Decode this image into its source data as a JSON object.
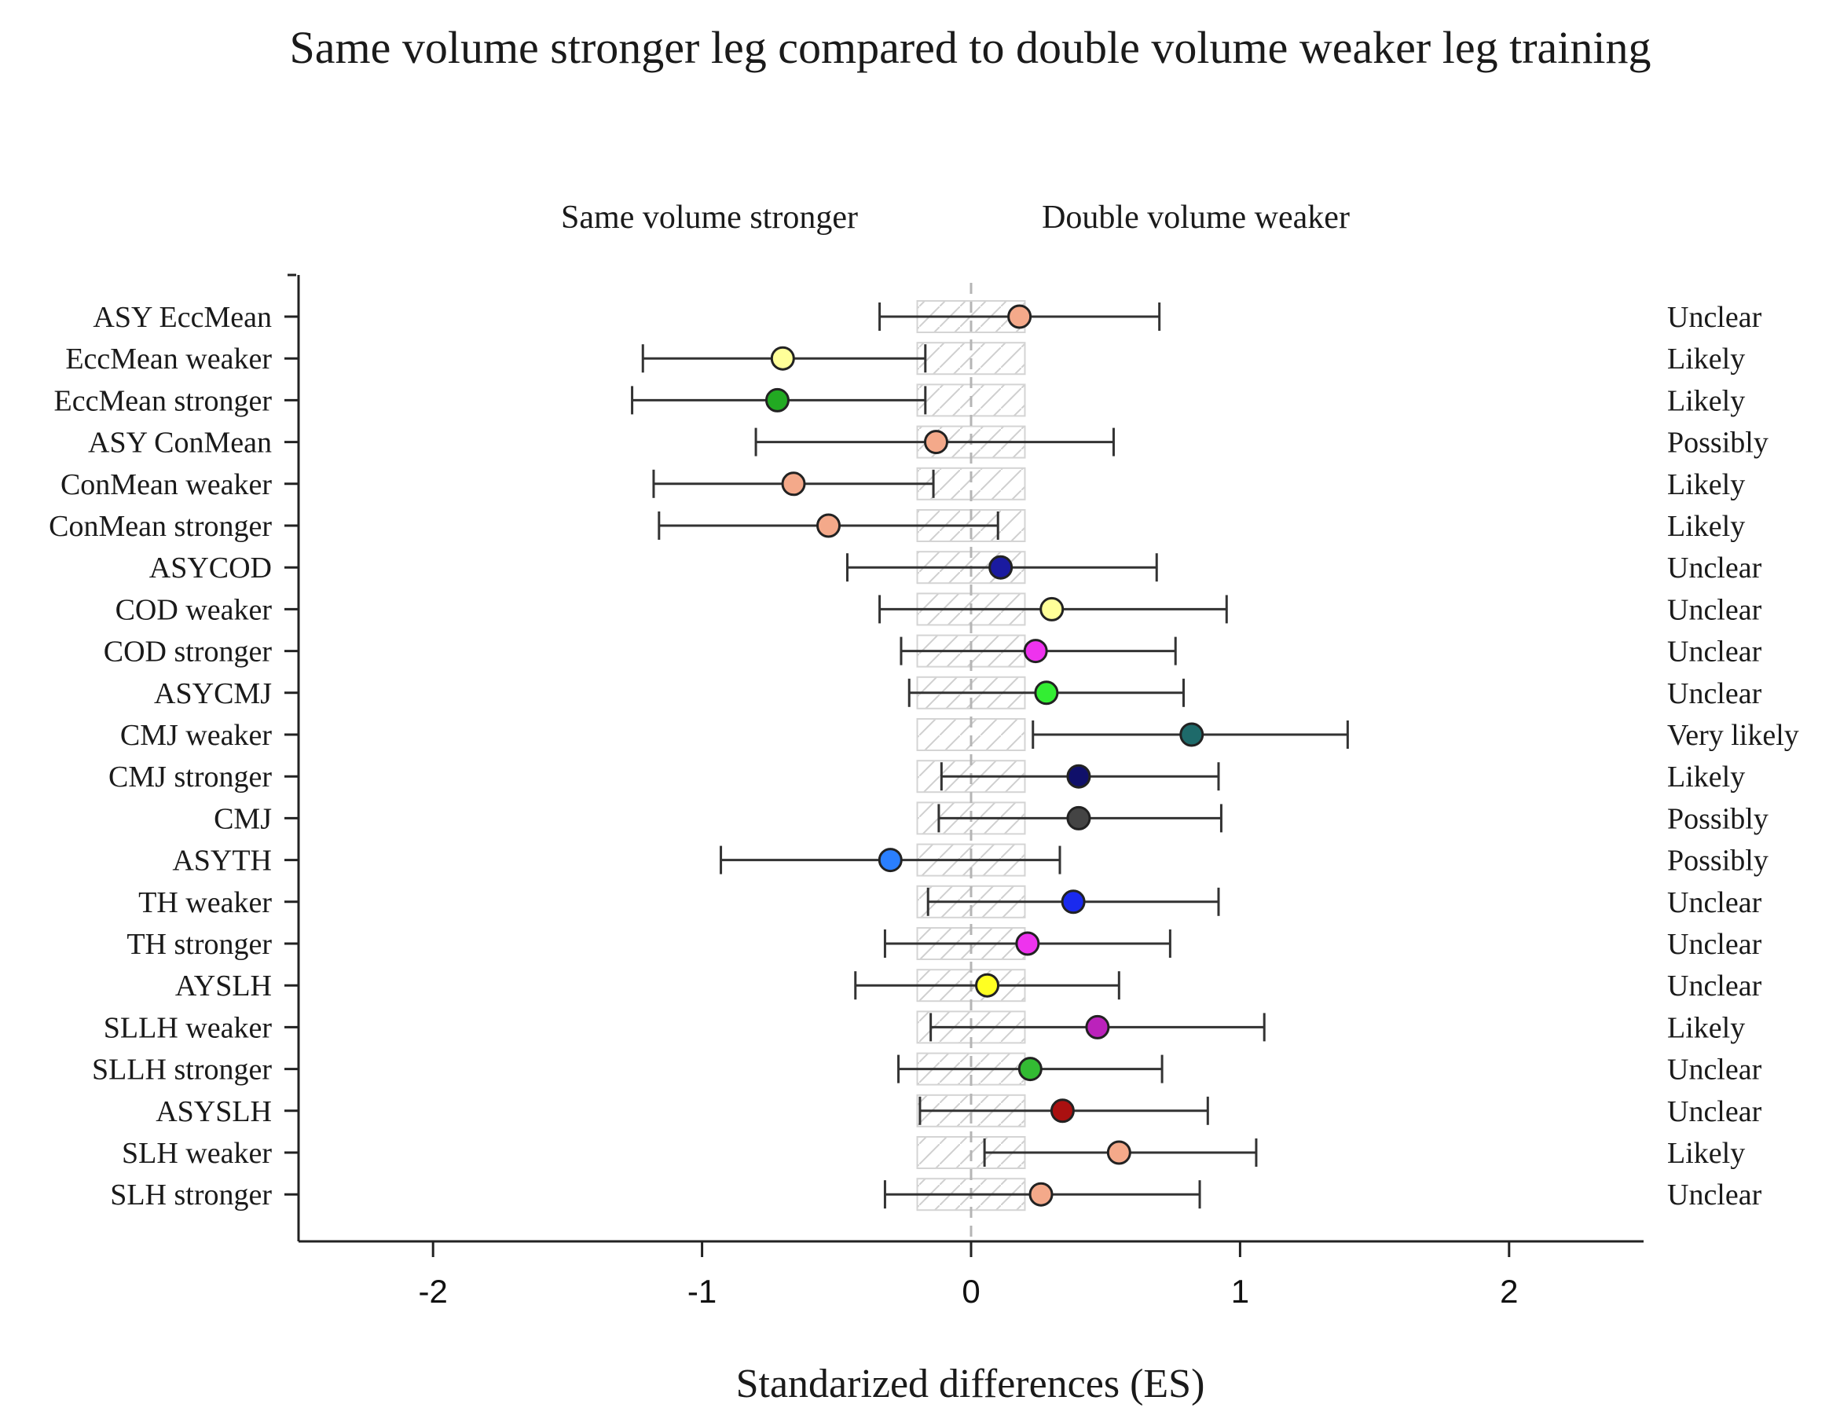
{
  "chart_data": {
    "type": "scatter",
    "title": "Same volume stronger leg compared to double volume weaker leg training",
    "xlabel": "Standarized differences (ES)",
    "region_labels": {
      "left": "Same volume stronger",
      "right": "Double volume weaker"
    },
    "xlim": [
      -2.5,
      2.5
    ],
    "xticks": [
      "-2",
      "-1",
      "0",
      "1",
      "2"
    ],
    "xtick_values": [
      -2,
      -1,
      0,
      1,
      2
    ],
    "trivial_zone": [
      -0.2,
      0.2
    ],
    "rows": [
      {
        "label": "ASY EccMean",
        "es": 0.18,
        "lo": -0.34,
        "hi": 0.7,
        "outcome": "Unclear",
        "color": "#f4a98a"
      },
      {
        "label": "EccMean weaker",
        "es": -0.7,
        "lo": -1.22,
        "hi": -0.17,
        "outcome": "Likely",
        "color": "#ffff99"
      },
      {
        "label": "EccMean stronger",
        "es": -0.72,
        "lo": -1.26,
        "hi": -0.17,
        "outcome": "Likely",
        "color": "#22aa22"
      },
      {
        "label": "ASY ConMean",
        "es": -0.13,
        "lo": -0.8,
        "hi": 0.53,
        "outcome": "Possibly",
        "color": "#f4a98a"
      },
      {
        "label": "ConMean weaker",
        "es": -0.66,
        "lo": -1.18,
        "hi": -0.14,
        "outcome": "Likely",
        "color": "#f4a98a"
      },
      {
        "label": "ConMean stronger",
        "es": -0.53,
        "lo": -1.16,
        "hi": 0.1,
        "outcome": "Likely",
        "color": "#f4a98a"
      },
      {
        "label": "ASYCOD",
        "es": 0.11,
        "lo": -0.46,
        "hi": 0.69,
        "outcome": "Unclear",
        "color": "#1a1aa0"
      },
      {
        "label": "COD weaker",
        "es": 0.3,
        "lo": -0.34,
        "hi": 0.95,
        "outcome": "Unclear",
        "color": "#ffff99"
      },
      {
        "label": "COD stronger",
        "es": 0.24,
        "lo": -0.26,
        "hi": 0.76,
        "outcome": "Unclear",
        "color": "#ee33ee"
      },
      {
        "label": "ASYCMJ",
        "es": 0.28,
        "lo": -0.23,
        "hi": 0.79,
        "outcome": "Unclear",
        "color": "#33ee33"
      },
      {
        "label": "CMJ weaker",
        "es": 0.82,
        "lo": 0.23,
        "hi": 1.4,
        "outcome": "Very likely",
        "color": "#1e6a6a"
      },
      {
        "label": "CMJ stronger",
        "es": 0.4,
        "lo": -0.11,
        "hi": 0.92,
        "outcome": "Likely",
        "color": "#10106a"
      },
      {
        "label": "CMJ",
        "es": 0.4,
        "lo": -0.12,
        "hi": 0.93,
        "outcome": "Possibly",
        "color": "#444444"
      },
      {
        "label": "ASYTH",
        "es": -0.3,
        "lo": -0.93,
        "hi": 0.33,
        "outcome": "Possibly",
        "color": "#2a7fff"
      },
      {
        "label": "TH weaker",
        "es": 0.38,
        "lo": -0.16,
        "hi": 0.92,
        "outcome": "Unclear",
        "color": "#1a2aee"
      },
      {
        "label": "TH stronger",
        "es": 0.21,
        "lo": -0.32,
        "hi": 0.74,
        "outcome": "Unclear",
        "color": "#ee33ee"
      },
      {
        "label": "AYSLH",
        "es": 0.06,
        "lo": -0.43,
        "hi": 0.55,
        "outcome": "Unclear",
        "color": "#ffff22"
      },
      {
        "label": "SLLH weaker",
        "es": 0.47,
        "lo": -0.15,
        "hi": 1.09,
        "outcome": "Likely",
        "color": "#bb22bb"
      },
      {
        "label": "SLLH stronger",
        "es": 0.22,
        "lo": -0.27,
        "hi": 0.71,
        "outcome": "Unclear",
        "color": "#33bb33"
      },
      {
        "label": "ASYSLH",
        "es": 0.34,
        "lo": -0.19,
        "hi": 0.88,
        "outcome": "Unclear",
        "color": "#aa1010"
      },
      {
        "label": "SLH weaker",
        "es": 0.55,
        "lo": 0.05,
        "hi": 1.06,
        "outcome": "Likely",
        "color": "#f4a98a"
      },
      {
        "label": "SLH stronger",
        "es": 0.26,
        "lo": -0.32,
        "hi": 0.85,
        "outcome": "Unclear",
        "color": "#f4a98a"
      }
    ]
  }
}
